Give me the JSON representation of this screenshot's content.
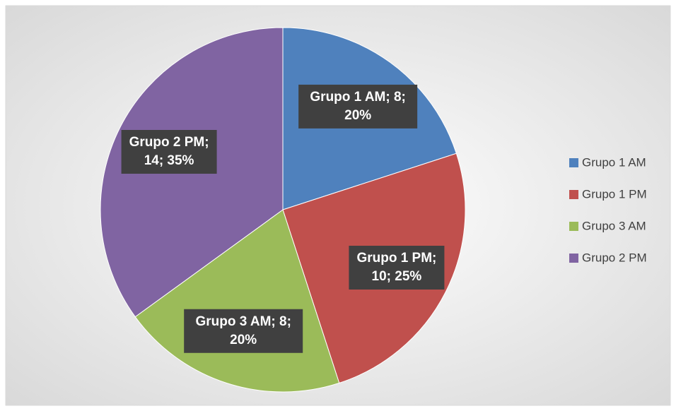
{
  "chart_data": {
    "type": "pie",
    "categories": [
      "Grupo 1 AM",
      "Grupo 1 PM",
      "Grupo 3 AM",
      "Grupo 2 PM"
    ],
    "values": [
      8,
      10,
      8,
      14
    ],
    "value_labels": [
      "Grupo 1 AM; 8; 20%",
      "Grupo 1 PM; 10; 25%",
      "Grupo 3 AM; 8; 20%",
      "Grupo 2 PM; 14; 35%"
    ],
    "colors": [
      "#4f81bd",
      "#c0504d",
      "#9bbb59",
      "#8064a2"
    ],
    "legend": "right"
  }
}
